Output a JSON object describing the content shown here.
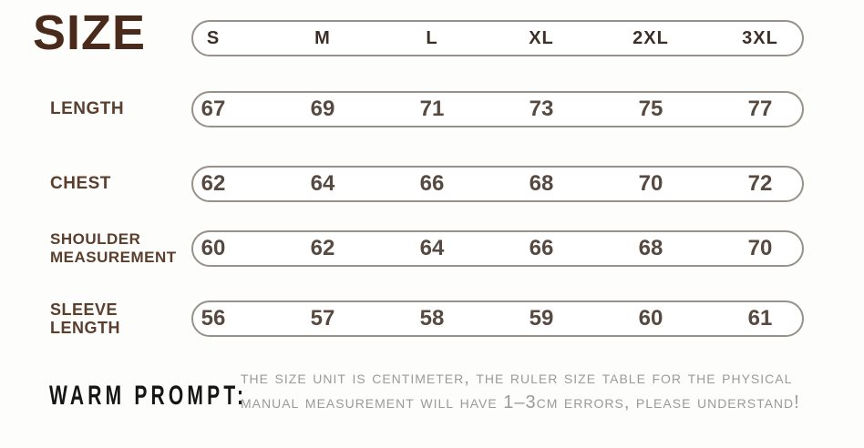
{
  "chart_data": {
    "type": "table",
    "title": "SIZE",
    "columns": [
      "S",
      "M",
      "L",
      "XL",
      "2XL",
      "3XL"
    ],
    "rows": [
      {
        "label": "LENGTH",
        "label_lines": [
          "LENGTH"
        ],
        "values": [
          "67",
          "69",
          "71",
          "73",
          "75",
          "77"
        ]
      },
      {
        "label": "CHEST",
        "label_lines": [
          "CHEST"
        ],
        "values": [
          "62",
          "64",
          "66",
          "68",
          "70",
          "72"
        ]
      },
      {
        "label": "SHOULDER MEASUREMENT",
        "label_lines": [
          "SHOULDER",
          "MEASUREMENT"
        ],
        "values": [
          "60",
          "62",
          "64",
          "66",
          "68",
          "70"
        ]
      },
      {
        "label": "SLEEVE LENGTH",
        "label_lines": [
          "SLEEVE",
          "LENGTH"
        ],
        "values": [
          "56",
          "57",
          "58",
          "59",
          "60",
          "61"
        ]
      }
    ],
    "unit_note": "THE SIZE UNIT IS CENTIMETER, THE RULER SIZE TABLE FOR THE PHYSICAL MANUAL MEASUREMENT WILL HAVE 1–3CM ERRORS, PLEASE UNDERSTAND!"
  },
  "footer": {
    "label": "WARM PROMPT:",
    "note_line1": "the size unit is centimeter, the ruler size table for the physical",
    "note_line2": "manual measurement will have 1–3cm errors, please understand!"
  },
  "colors": {
    "bg": "#fdfdfb",
    "title": "#4a2b1b",
    "row_label": "#5a3e2e",
    "header_text": "#3c2f27",
    "value_text": "#574940",
    "border": "#96918a",
    "warm_prompt": "#151515",
    "note_text": "#9a9a9a"
  }
}
